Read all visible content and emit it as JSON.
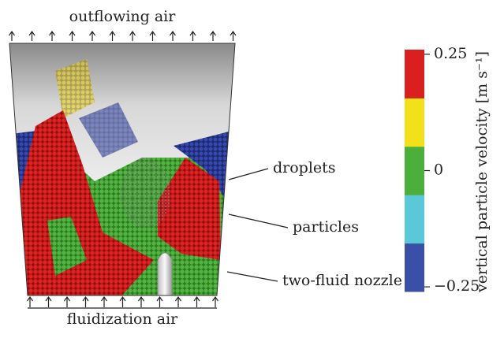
{
  "labels": {
    "top": "outflowing air",
    "bottom": "fluidization air",
    "droplets": "droplets",
    "particles": "particles",
    "nozzle": "two-fluid nozzle"
  },
  "colorbar": {
    "title": "vertical particle velocity [m s⁻¹]",
    "lim": [
      -0.26,
      0.26
    ],
    "colors": [
      "#3a4fa8",
      "#5bc8d8",
      "#4caf3c",
      "#f2e11a",
      "#d9201f"
    ],
    "ticks": [
      {
        "value": 0.25,
        "label": "0.25"
      },
      {
        "value": 0,
        "label": "0"
      },
      {
        "value": -0.25,
        "label": "−0.25"
      }
    ]
  }
}
